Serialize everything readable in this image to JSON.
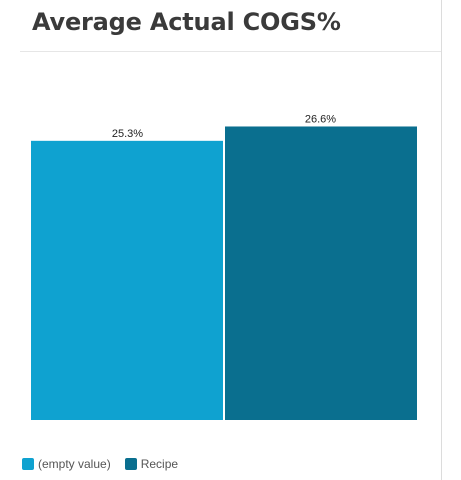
{
  "title": "Average Actual COGS%",
  "chart_data": {
    "type": "bar",
    "categories": [
      "(empty value)",
      "Recipe"
    ],
    "values": [
      25.3,
      26.6
    ],
    "value_labels": [
      "25.3%",
      "26.6%"
    ],
    "colors": [
      "#0fa2d0",
      "#0a6f8f"
    ],
    "ylim": [
      0,
      29
    ],
    "grid": false,
    "legend_position": "bottom-left"
  },
  "legend": [
    {
      "label": "(empty value)",
      "color": "#0fa2d0"
    },
    {
      "label": "Recipe",
      "color": "#0a6f8f"
    }
  ]
}
